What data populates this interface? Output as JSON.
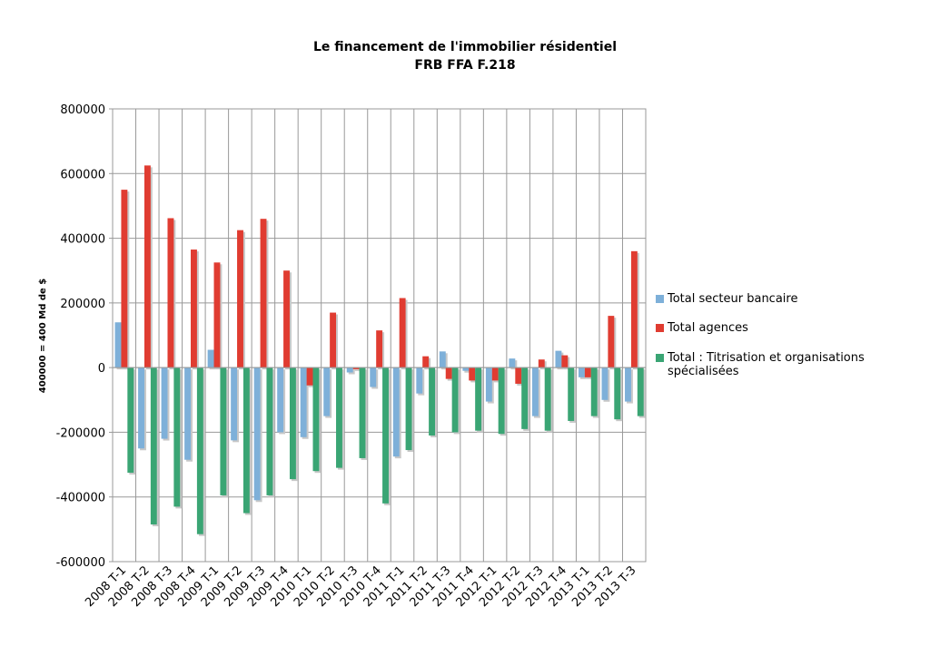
{
  "chart_data": {
    "type": "bar",
    "title": "Le financement de l'immobilier résidentiel",
    "subtitle": "FRB FFA  F.218",
    "ylabel": "400000 = 400 Md de $",
    "categories": [
      "2008 T-1",
      "2008 T-2",
      "2008 T-3",
      "2008 T-4",
      "2009 T-1",
      "2009 T-2",
      "2009 T-3",
      "2009 T-4",
      "2010 T-1",
      "2010 T-2",
      "2010 T-3",
      "2010 T-4",
      "2011 T-1",
      "2011 T-2",
      "2011 T-3",
      "2011 T-4",
      "2012 T-1",
      "2012 T-2",
      "2012 T-3",
      "2012 T-4",
      "2013 T-1",
      "2013 T-2",
      "2013 T-3"
    ],
    "series": [
      {
        "name": "Total secteur bancaire",
        "color": "#7eb0d9",
        "values": [
          140000,
          -250000,
          -220000,
          -285000,
          55000,
          -225000,
          -410000,
          -200000,
          -215000,
          -150000,
          -15000,
          -60000,
          -275000,
          -80000,
          50000,
          -10000,
          -105000,
          28000,
          -150000,
          52000,
          -30000,
          -100000,
          -105000
        ]
      },
      {
        "name": "Total agences",
        "color": "#e03c31",
        "values": [
          550000,
          625000,
          462000,
          365000,
          325000,
          425000,
          460000,
          300000,
          -55000,
          170000,
          -5000,
          115000,
          215000,
          35000,
          -35000,
          -40000,
          -40000,
          -50000,
          25000,
          38000,
          -30000,
          160000,
          360000
        ]
      },
      {
        "name": "Total : Titrisation et organisations spécialisées",
        "color": "#3aa574",
        "values": [
          -325000,
          -485000,
          -430000,
          -515000,
          -395000,
          -450000,
          -395000,
          -345000,
          -320000,
          -310000,
          -280000,
          -420000,
          -255000,
          -210000,
          -200000,
          -195000,
          -205000,
          -190000,
          -195000,
          -165000,
          -150000,
          -160000,
          -150000
        ]
      }
    ],
    "ylim": [
      -600000,
      800000
    ],
    "yticks": [
      -600000,
      -400000,
      -200000,
      0,
      200000,
      400000,
      600000,
      800000
    ],
    "grid": true
  }
}
